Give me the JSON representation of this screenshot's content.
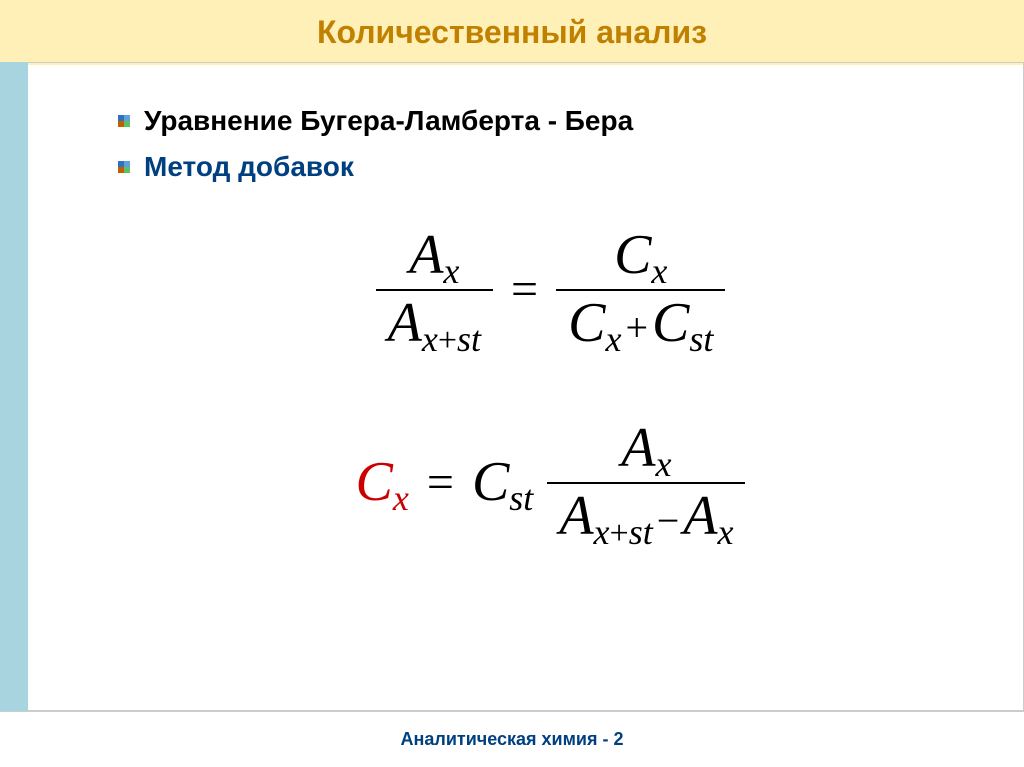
{
  "colors": {
    "title_bg": "#fff0b8",
    "title_text": "#c08000",
    "stripe": "#a8d4e0",
    "bullet1_text": "#000000",
    "bullet2_text": "#004080",
    "red": "#cc0000",
    "footer_text": "#004080"
  },
  "title": "Количественный анализ",
  "bullets": {
    "b1": "Уравнение Бугера-Ламберта - Бера",
    "b2": "Метод добавок"
  },
  "equations": {
    "eq1": {
      "left_num_base": "A",
      "left_num_sub": "x",
      "left_den_base": "A",
      "left_den_sub": "x+st",
      "right_num_base": "C",
      "right_num_sub": "x",
      "right_den_t1_base": "C",
      "right_den_t1_sub": "x",
      "right_den_op": "+",
      "right_den_t2_base": "C",
      "right_den_t2_sub": "st"
    },
    "eq2": {
      "lhs_base": "C",
      "lhs_sub": "x",
      "coef_base": "C",
      "coef_sub": "st",
      "frac_num_base": "A",
      "frac_num_sub": "x",
      "frac_den_t1_base": "A",
      "frac_den_t1_sub": "x+st",
      "frac_den_op": "−",
      "frac_den_t2_base": "A",
      "frac_den_t2_sub": "x"
    }
  },
  "footer": "Аналитическая химия - 2"
}
